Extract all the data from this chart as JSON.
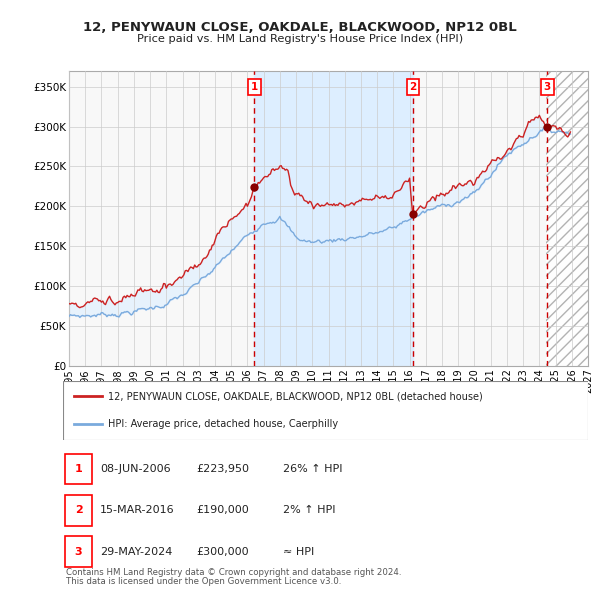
{
  "title": "12, PENYWAUN CLOSE, OAKDALE, BLACKWOOD, NP12 0BL",
  "subtitle": "Price paid vs. HM Land Registry's House Price Index (HPI)",
  "xlim": [
    1995.0,
    2027.0
  ],
  "ylim": [
    0,
    370000
  ],
  "yticks": [
    0,
    50000,
    100000,
    150000,
    200000,
    250000,
    300000,
    350000
  ],
  "ytick_labels": [
    "£0",
    "£50K",
    "£100K",
    "£150K",
    "£200K",
    "£250K",
    "£300K",
    "£350K"
  ],
  "sale_prices": [
    223950,
    190000,
    300000
  ],
  "sale_labels": [
    "1",
    "2",
    "3"
  ],
  "sale_label_texts": [
    "08-JUN-2006",
    "15-MAR-2016",
    "29-MAY-2024"
  ],
  "sale_price_texts": [
    "£223,950",
    "£190,000",
    "£300,000"
  ],
  "sale_hpi_texts": [
    "26% ↑ HPI",
    "2% ↑ HPI",
    "≈ HPI"
  ],
  "vline_color": "#cc0000",
  "hpi_line_color": "#7aaadd",
  "price_line_color": "#cc2222",
  "shade_between_color": "#ddeeff",
  "dot_color": "#880000",
  "legend1": "12, PENYWAUN CLOSE, OAKDALE, BLACKWOOD, NP12 0BL (detached house)",
  "legend2": "HPI: Average price, detached house, Caerphilly",
  "footnote1": "Contains HM Land Registry data © Crown copyright and database right 2024.",
  "footnote2": "This data is licensed under the Open Government Licence v3.0.",
  "grid_color": "#cccccc",
  "bg_color": "#ffffff",
  "plot_bg_color": "#f8f8f8",
  "hatch_region_start": 2024.42,
  "shade_region_start_decimal": 2006.44,
  "shade_region_end_decimal": 2016.21
}
